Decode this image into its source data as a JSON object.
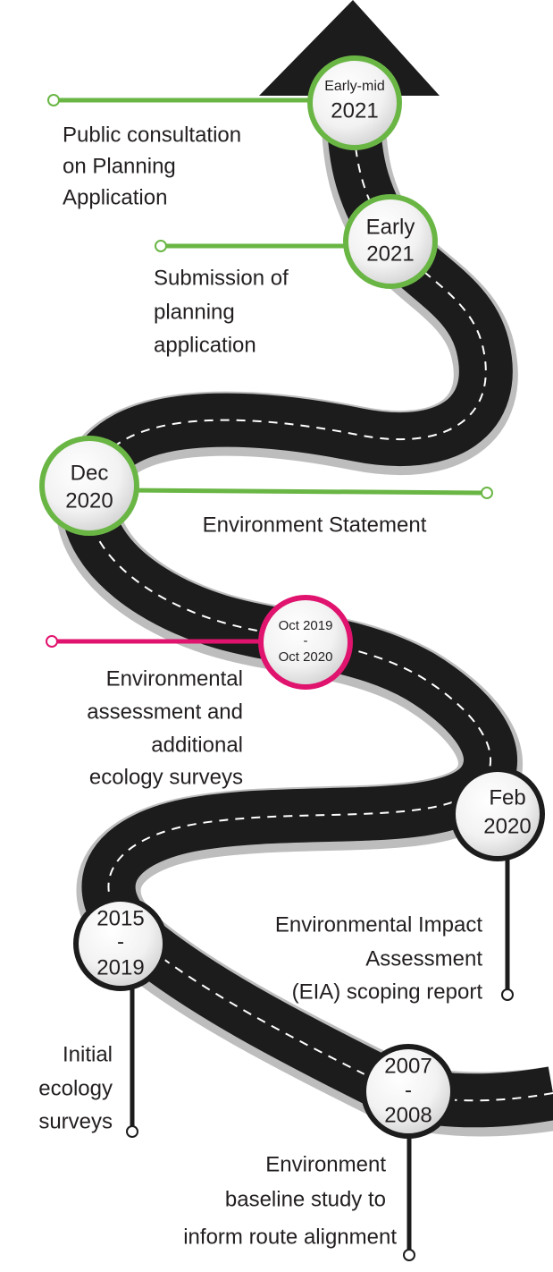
{
  "milestones": [
    {
      "date": [
        "Early-mid",
        "2021"
      ],
      "label": [
        "Public consultation",
        "on Planning",
        "Application"
      ]
    },
    {
      "date": [
        "Early",
        "2021"
      ],
      "label": [
        "Submission of",
        "planning",
        "application"
      ]
    },
    {
      "date": [
        "Dec",
        "2020"
      ],
      "label": [
        "Environment Statement"
      ]
    },
    {
      "date": [
        "Oct 2019",
        "-",
        "Oct 2020"
      ],
      "label": [
        "Environmental",
        "assessment and",
        "additional",
        "ecology surveys"
      ]
    },
    {
      "date": [
        "Feb",
        "2020"
      ],
      "label": [
        "Environmental Impact",
        "Assessment",
        "(EIA) scoping report"
      ]
    },
    {
      "date": [
        "2015",
        "-",
        "2019"
      ],
      "label": [
        "Initial",
        "ecology",
        "surveys"
      ]
    },
    {
      "date": [
        "2007",
        "-",
        "2008"
      ],
      "label": [
        "Environment",
        "baseline study to",
        "inform route alignment"
      ]
    }
  ]
}
